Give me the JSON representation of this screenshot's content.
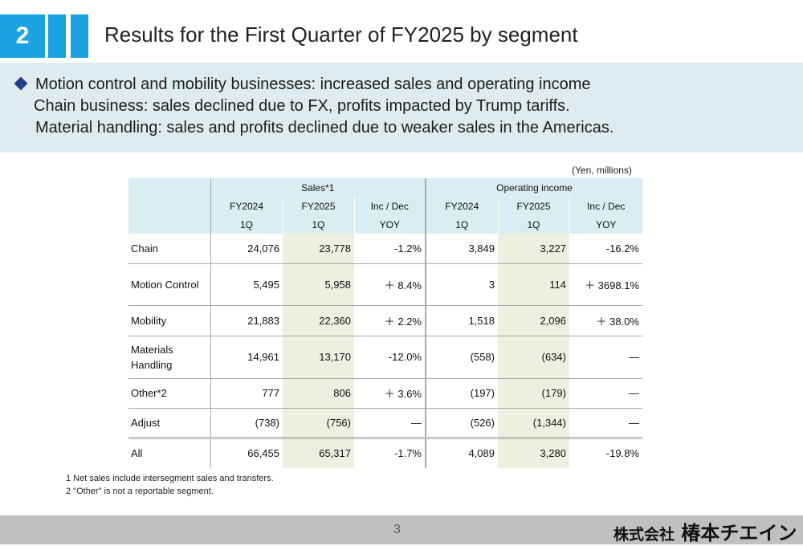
{
  "header": {
    "section_number": "2",
    "title": "Results for the First Quarter of FY2025 by segment"
  },
  "summary": {
    "line1": "Motion control and mobility businesses: increased sales and operating income",
    "line2": "Chain business: sales declined due to FX, profits impacted by Trump tariffs.",
    "line3": "Material handling: sales and profits declined due to weaker sales in the Americas."
  },
  "table": {
    "unit": "(Yen, millions)",
    "group_sales": "Sales*1",
    "group_op": "Operating income",
    "col_fy2024": "FY2024",
    "col_fy2025": "FY2025",
    "col_incdec": "Inc / Dec",
    "sub_1q": "1Q",
    "sub_yoy": "YOY",
    "rows": [
      {
        "label": "Chain",
        "s24": "24,076",
        "s25": "23,778",
        "syoy": "-1.2%",
        "o24": "3,849",
        "o25": "3,227",
        "oyoy": "-16.2%"
      },
      {
        "label": "Motion Control",
        "s24": "5,495",
        "s25": "5,958",
        "syoy": "＋ 8.4%",
        "o24": "3",
        "o25": "114",
        "oyoy": "＋ 3698.1%"
      },
      {
        "label": "Mobility",
        "s24": "21,883",
        "s25": "22,360",
        "syoy": "＋ 2.2%",
        "o24": "1,518",
        "o25": "2,096",
        "oyoy": "＋ 38.0%"
      },
      {
        "label": "Materials Handling",
        "s24": "14,961",
        "s25": "13,170",
        "syoy": "-12.0%",
        "o24": "(558)",
        "o25": "(634)",
        "oyoy": "—"
      },
      {
        "label": "Other*2",
        "s24": "777",
        "s25": "806",
        "syoy": "＋ 3.6%",
        "o24": "(197)",
        "o25": "(179)",
        "oyoy": "—"
      },
      {
        "label": "Adjust",
        "s24": "(738)",
        "s25": "(756)",
        "syoy": "—",
        "o24": "(526)",
        "o25": "(1,344)",
        "oyoy": "—"
      },
      {
        "label": "All",
        "s24": "66,455",
        "s25": "65,317",
        "syoy": "-1.7%",
        "o24": "4,089",
        "o25": "3,280",
        "oyoy": "-19.8%"
      }
    ]
  },
  "notes": {
    "note1": "1 Net sales include intersegment sales and transfers.",
    "note2": "2 \"Other\" is not a reportable segment."
  },
  "footer": {
    "page_number": "3",
    "company_prefix": "株式会社",
    "company_name": "椿本チエイン"
  },
  "colors": {
    "accent_blue": "#1aa3e0",
    "summary_bg": "#deecef",
    "header_bg": "#d9edf3",
    "fy2025_bg": "#ebf1de",
    "footer_bg": "#c0c0c0"
  }
}
